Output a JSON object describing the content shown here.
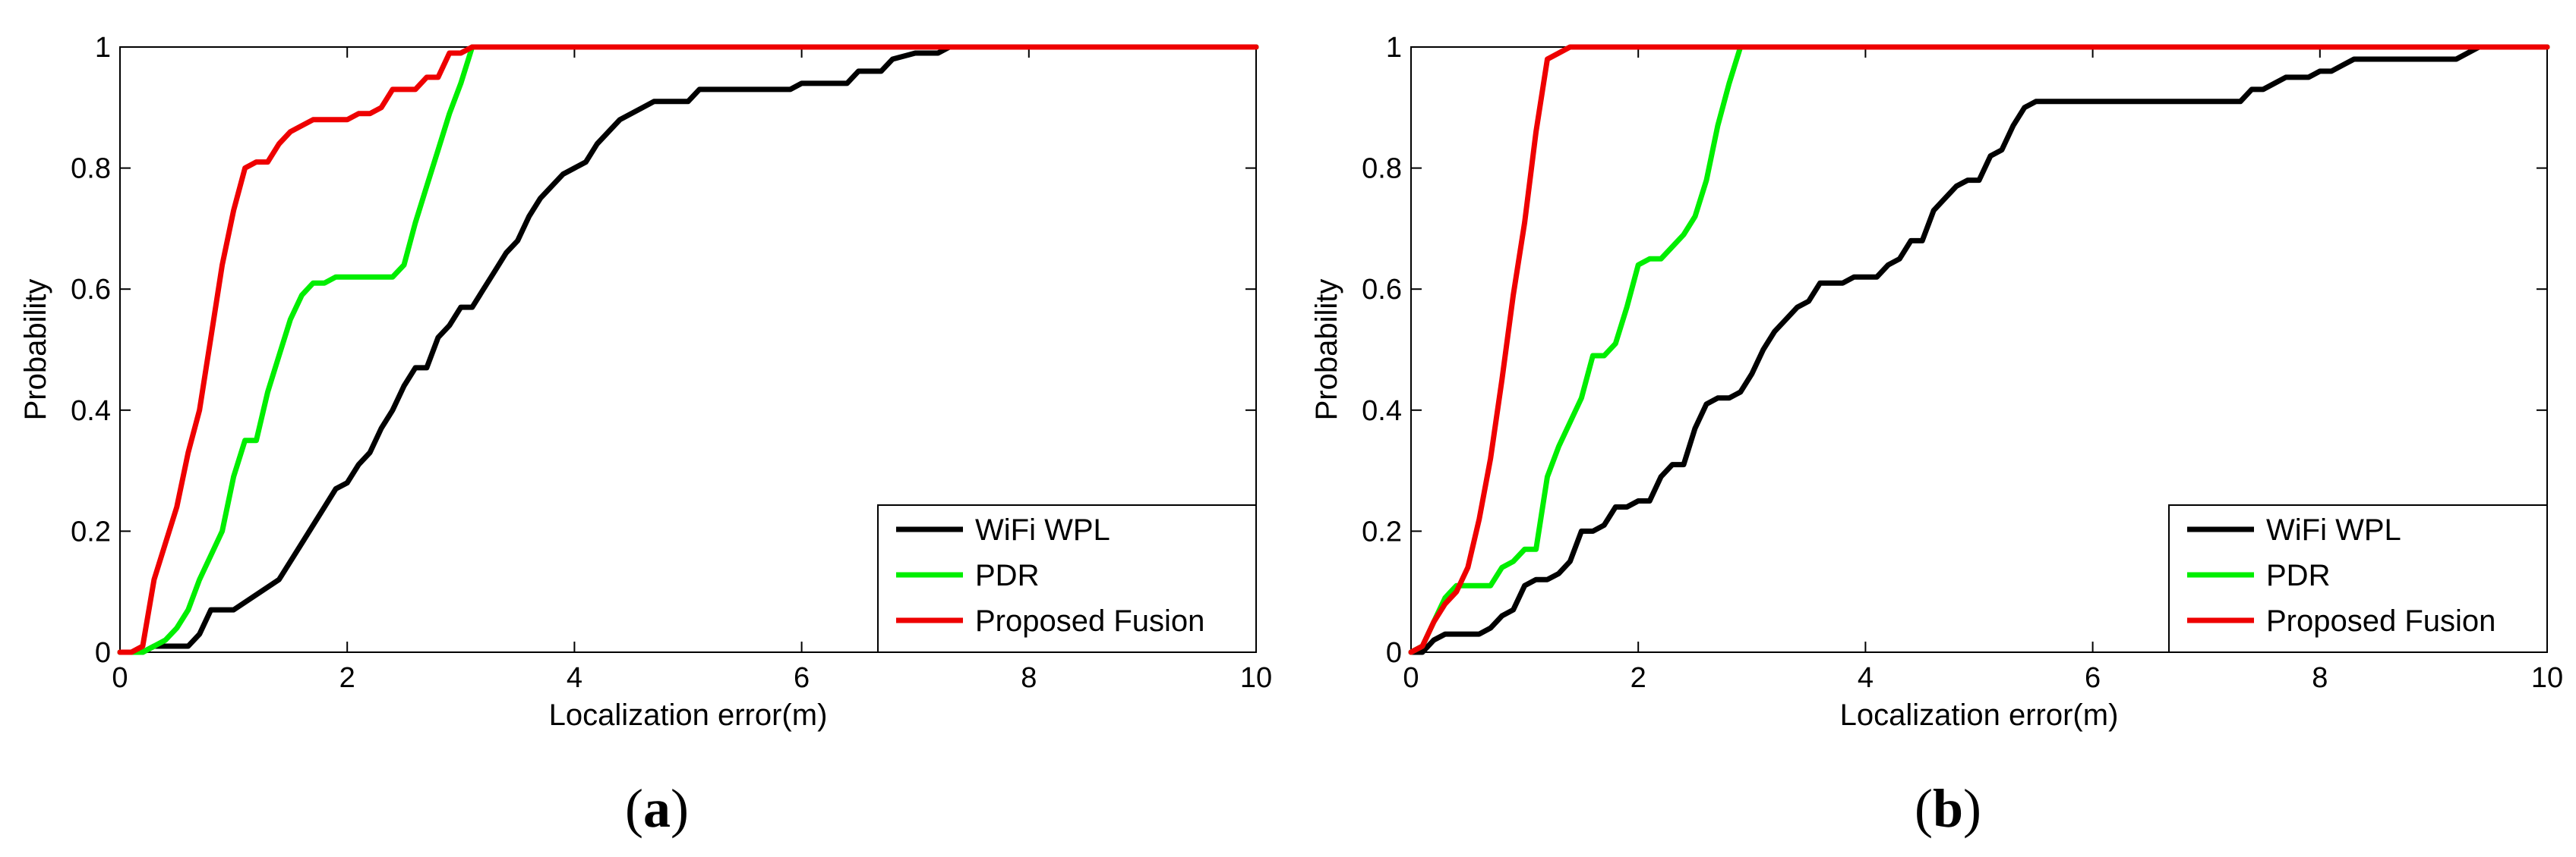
{
  "chart_data": [
    {
      "type": "line",
      "panel_label": "a",
      "xlabel": "Localization error(m)",
      "ylabel": "Probability",
      "xlim": [
        0,
        10
      ],
      "ylim": [
        0,
        1
      ],
      "xticks": [
        "0",
        "2",
        "4",
        "6",
        "8",
        "10"
      ],
      "yticks": [
        "0",
        "0.2",
        "0.4",
        "0.6",
        "0.8",
        "1"
      ],
      "grid": false,
      "legend_position": "bottom-right",
      "series": [
        {
          "name": "WiFi WPL",
          "color": "#000000",
          "points": [
            [
              0,
              0
            ],
            [
              0.2,
              0
            ],
            [
              0.3,
              0.01
            ],
            [
              0.6,
              0.01
            ],
            [
              0.7,
              0.03
            ],
            [
              0.8,
              0.07
            ],
            [
              1.0,
              0.07
            ],
            [
              1.4,
              0.12
            ],
            [
              1.6,
              0.18
            ],
            [
              1.8,
              0.24
            ],
            [
              1.9,
              0.27
            ],
            [
              2.0,
              0.28
            ],
            [
              2.1,
              0.31
            ],
            [
              2.2,
              0.33
            ],
            [
              2.3,
              0.37
            ],
            [
              2.4,
              0.4
            ],
            [
              2.5,
              0.44
            ],
            [
              2.6,
              0.47
            ],
            [
              2.7,
              0.47
            ],
            [
              2.8,
              0.52
            ],
            [
              2.9,
              0.54
            ],
            [
              3.0,
              0.57
            ],
            [
              3.1,
              0.57
            ],
            [
              3.2,
              0.6
            ],
            [
              3.3,
              0.63
            ],
            [
              3.4,
              0.66
            ],
            [
              3.5,
              0.68
            ],
            [
              3.6,
              0.72
            ],
            [
              3.7,
              0.75
            ],
            [
              3.8,
              0.77
            ],
            [
              3.9,
              0.79
            ],
            [
              4.0,
              0.8
            ],
            [
              4.1,
              0.81
            ],
            [
              4.2,
              0.84
            ],
            [
              4.3,
              0.86
            ],
            [
              4.4,
              0.88
            ],
            [
              4.5,
              0.89
            ],
            [
              4.6,
              0.9
            ],
            [
              4.7,
              0.91
            ],
            [
              5.0,
              0.91
            ],
            [
              5.1,
              0.93
            ],
            [
              5.9,
              0.93
            ],
            [
              6.0,
              0.94
            ],
            [
              6.4,
              0.94
            ],
            [
              6.5,
              0.96
            ],
            [
              6.7,
              0.96
            ],
            [
              6.8,
              0.98
            ],
            [
              7.0,
              0.99
            ],
            [
              7.2,
              0.99
            ],
            [
              7.3,
              1.0
            ],
            [
              10,
              1.0
            ]
          ]
        },
        {
          "name": "PDR",
          "color": "#00ee00",
          "points": [
            [
              0,
              0
            ],
            [
              0.2,
              0
            ],
            [
              0.3,
              0.01
            ],
            [
              0.4,
              0.02
            ],
            [
              0.5,
              0.04
            ],
            [
              0.6,
              0.07
            ],
            [
              0.7,
              0.12
            ],
            [
              0.8,
              0.16
            ],
            [
              0.9,
              0.2
            ],
            [
              1.0,
              0.29
            ],
            [
              1.1,
              0.35
            ],
            [
              1.2,
              0.35
            ],
            [
              1.3,
              0.43
            ],
            [
              1.4,
              0.49
            ],
            [
              1.5,
              0.55
            ],
            [
              1.6,
              0.59
            ],
            [
              1.7,
              0.61
            ],
            [
              1.8,
              0.61
            ],
            [
              1.9,
              0.62
            ],
            [
              2.4,
              0.62
            ],
            [
              2.5,
              0.64
            ],
            [
              2.6,
              0.71
            ],
            [
              2.7,
              0.77
            ],
            [
              2.8,
              0.83
            ],
            [
              2.9,
              0.89
            ],
            [
              3.0,
              0.94
            ],
            [
              3.1,
              1.0
            ],
            [
              10,
              1.0
            ]
          ]
        },
        {
          "name": "Proposed Fusion",
          "color": "#ee0000",
          "points": [
            [
              0,
              0
            ],
            [
              0.1,
              0
            ],
            [
              0.2,
              0.01
            ],
            [
              0.3,
              0.12
            ],
            [
              0.4,
              0.18
            ],
            [
              0.5,
              0.24
            ],
            [
              0.6,
              0.33
            ],
            [
              0.7,
              0.4
            ],
            [
              0.8,
              0.52
            ],
            [
              0.9,
              0.64
            ],
            [
              1.0,
              0.73
            ],
            [
              1.1,
              0.8
            ],
            [
              1.2,
              0.81
            ],
            [
              1.3,
              0.81
            ],
            [
              1.4,
              0.84
            ],
            [
              1.5,
              0.86
            ],
            [
              1.6,
              0.87
            ],
            [
              1.7,
              0.88
            ],
            [
              2.0,
              0.88
            ],
            [
              2.1,
              0.89
            ],
            [
              2.2,
              0.89
            ],
            [
              2.3,
              0.9
            ],
            [
              2.4,
              0.93
            ],
            [
              2.6,
              0.93
            ],
            [
              2.7,
              0.95
            ],
            [
              2.8,
              0.95
            ],
            [
              2.9,
              0.99
            ],
            [
              3.0,
              0.99
            ],
            [
              3.1,
              1.0
            ],
            [
              10,
              1.0
            ]
          ]
        }
      ]
    },
    {
      "type": "line",
      "panel_label": "b",
      "xlabel": "Localization error(m)",
      "ylabel": "Probability",
      "xlim": [
        0,
        10
      ],
      "ylim": [
        0,
        1
      ],
      "xticks": [
        "0",
        "2",
        "4",
        "6",
        "8",
        "10"
      ],
      "yticks": [
        "0",
        "0.2",
        "0.4",
        "0.6",
        "0.8",
        "1"
      ],
      "grid": false,
      "legend_position": "bottom-right",
      "series": [
        {
          "name": "WiFi WPL",
          "color": "#000000",
          "points": [
            [
              0,
              0
            ],
            [
              0.1,
              0
            ],
            [
              0.2,
              0.02
            ],
            [
              0.3,
              0.03
            ],
            [
              0.6,
              0.03
            ],
            [
              0.7,
              0.04
            ],
            [
              0.8,
              0.06
            ],
            [
              0.9,
              0.07
            ],
            [
              1.0,
              0.11
            ],
            [
              1.1,
              0.12
            ],
            [
              1.2,
              0.12
            ],
            [
              1.3,
              0.13
            ],
            [
              1.4,
              0.15
            ],
            [
              1.5,
              0.2
            ],
            [
              1.6,
              0.2
            ],
            [
              1.7,
              0.21
            ],
            [
              1.8,
              0.24
            ],
            [
              1.9,
              0.24
            ],
            [
              2.0,
              0.25
            ],
            [
              2.1,
              0.25
            ],
            [
              2.2,
              0.29
            ],
            [
              2.3,
              0.31
            ],
            [
              2.4,
              0.31
            ],
            [
              2.5,
              0.37
            ],
            [
              2.6,
              0.41
            ],
            [
              2.7,
              0.42
            ],
            [
              2.8,
              0.42
            ],
            [
              2.9,
              0.43
            ],
            [
              3.0,
              0.46
            ],
            [
              3.1,
              0.5
            ],
            [
              3.2,
              0.53
            ],
            [
              3.3,
              0.55
            ],
            [
              3.4,
              0.57
            ],
            [
              3.5,
              0.58
            ],
            [
              3.6,
              0.61
            ],
            [
              3.8,
              0.61
            ],
            [
              3.9,
              0.62
            ],
            [
              4.1,
              0.62
            ],
            [
              4.2,
              0.64
            ],
            [
              4.3,
              0.65
            ],
            [
              4.4,
              0.68
            ],
            [
              4.5,
              0.68
            ],
            [
              4.6,
              0.73
            ],
            [
              4.7,
              0.75
            ],
            [
              4.8,
              0.77
            ],
            [
              4.9,
              0.78
            ],
            [
              5.0,
              0.78
            ],
            [
              5.1,
              0.82
            ],
            [
              5.2,
              0.83
            ],
            [
              5.3,
              0.87
            ],
            [
              5.4,
              0.9
            ],
            [
              5.5,
              0.91
            ],
            [
              7.3,
              0.91
            ],
            [
              7.4,
              0.93
            ],
            [
              7.5,
              0.93
            ],
            [
              7.6,
              0.94
            ],
            [
              7.7,
              0.95
            ],
            [
              7.9,
              0.95
            ],
            [
              8.0,
              0.96
            ],
            [
              8.1,
              0.96
            ],
            [
              8.2,
              0.97
            ],
            [
              8.3,
              0.98
            ],
            [
              9.2,
              0.98
            ],
            [
              9.4,
              1.0
            ],
            [
              10,
              1.0
            ]
          ]
        },
        {
          "name": "PDR",
          "color": "#00ee00",
          "points": [
            [
              0,
              0
            ],
            [
              0.1,
              0.01
            ],
            [
              0.2,
              0.05
            ],
            [
              0.3,
              0.09
            ],
            [
              0.4,
              0.11
            ],
            [
              0.7,
              0.11
            ],
            [
              0.8,
              0.14
            ],
            [
              0.9,
              0.15
            ],
            [
              1.0,
              0.17
            ],
            [
              1.1,
              0.17
            ],
            [
              1.2,
              0.29
            ],
            [
              1.3,
              0.34
            ],
            [
              1.4,
              0.38
            ],
            [
              1.5,
              0.42
            ],
            [
              1.6,
              0.49
            ],
            [
              1.7,
              0.49
            ],
            [
              1.8,
              0.51
            ],
            [
              1.9,
              0.57
            ],
            [
              2.0,
              0.64
            ],
            [
              2.1,
              0.65
            ],
            [
              2.2,
              0.65
            ],
            [
              2.3,
              0.67
            ],
            [
              2.4,
              0.69
            ],
            [
              2.5,
              0.72
            ],
            [
              2.6,
              0.78
            ],
            [
              2.7,
              0.87
            ],
            [
              2.8,
              0.94
            ],
            [
              2.9,
              1.0
            ],
            [
              10,
              1.0
            ]
          ]
        },
        {
          "name": "Proposed Fusion",
          "color": "#ee0000",
          "points": [
            [
              0,
              0
            ],
            [
              0.1,
              0.01
            ],
            [
              0.2,
              0.05
            ],
            [
              0.3,
              0.08
            ],
            [
              0.4,
              0.1
            ],
            [
              0.5,
              0.14
            ],
            [
              0.6,
              0.22
            ],
            [
              0.7,
              0.32
            ],
            [
              0.8,
              0.45
            ],
            [
              0.9,
              0.59
            ],
            [
              1.0,
              0.71
            ],
            [
              1.1,
              0.86
            ],
            [
              1.2,
              0.98
            ],
            [
              1.3,
              0.99
            ],
            [
              1.4,
              1.0
            ],
            [
              10,
              1.0
            ]
          ]
        }
      ]
    }
  ]
}
